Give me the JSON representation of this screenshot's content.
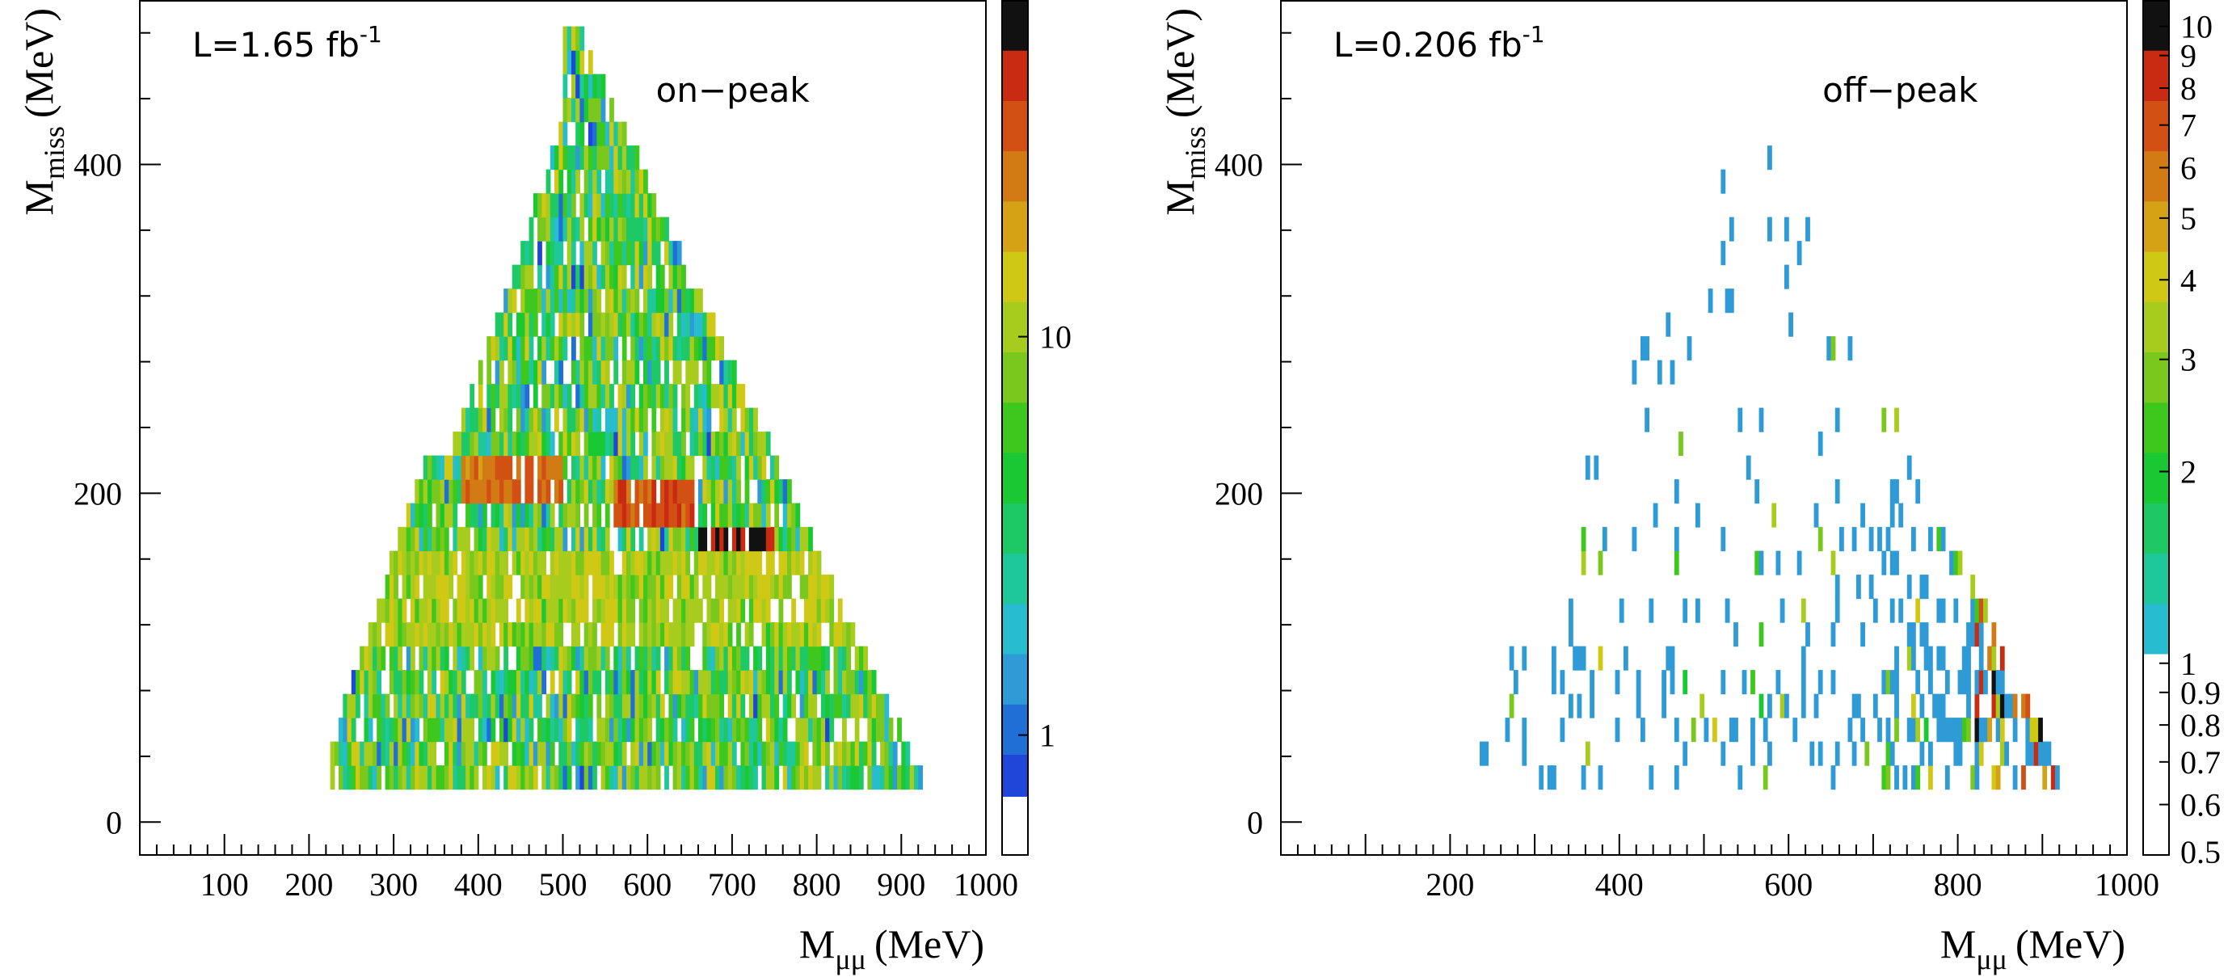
{
  "chart_data": [
    {
      "type": "heatmap",
      "panel": "left",
      "luminosity_label": "L=1.65 fb",
      "luminosity_exponent": "-1",
      "annotation": "on−peak",
      "xlabel_main": "M",
      "xlabel_sub": "μμ",
      "xlabel_unit": "(MeV)",
      "ylabel_main": "M",
      "ylabel_sub": "miss",
      "ylabel_unit": "(MeV)",
      "xlim": [
        0,
        1000
      ],
      "ylim": [
        -20,
        500
      ],
      "x_ticks": [
        100,
        200,
        300,
        400,
        500,
        600,
        700,
        800,
        900,
        1000
      ],
      "y_ticks": [
        0,
        200,
        400
      ],
      "z_scale": "log",
      "zlim": [
        0.5,
        70
      ],
      "colorbar_ticks": [
        1,
        10
      ],
      "region": {
        "x_min": 210,
        "x_max": 930,
        "y_min": 20,
        "y_max": 480
      },
      "density_description": "triangular kinematic region, dense filling; bands near Mmiss~200 MeV reaching 40-70 counts",
      "hot_bands": [
        {
          "y": 205,
          "x_from": 380,
          "x_to": 500,
          "value": 30
        },
        {
          "y": 190,
          "x_from": 560,
          "x_to": 660,
          "value": 35
        },
        {
          "y": 175,
          "x_from": 660,
          "x_to": 750,
          "value": 60
        }
      ]
    },
    {
      "type": "heatmap",
      "panel": "right",
      "luminosity_label": "L=0.206 fb",
      "luminosity_exponent": "-1",
      "annotation": "off−peak",
      "xlabel_main": "M",
      "xlabel_sub": "μμ",
      "xlabel_unit": "(MeV)",
      "ylabel_main": "M",
      "ylabel_sub": "miss",
      "ylabel_unit": "(MeV)",
      "xlim": [
        0,
        1000
      ],
      "ylim": [
        -20,
        500
      ],
      "x_ticks": [
        200,
        400,
        600,
        800,
        1000
      ],
      "y_ticks": [
        0,
        200,
        400
      ],
      "z_scale": "log",
      "zlim": [
        0.5,
        11
      ],
      "colorbar_ticks": [
        {
          "value": 0.5,
          "label": "0.5"
        },
        {
          "value": 0.6,
          "label": "0.6"
        },
        {
          "value": 0.7,
          "label": "0.7"
        },
        {
          "value": 0.8,
          "label": "0.8"
        },
        {
          "value": 0.9,
          "label": "0.9"
        },
        {
          "value": 1,
          "label": "1"
        },
        {
          "value": 2,
          "label": "2"
        },
        {
          "value": 3,
          "label": "3"
        },
        {
          "value": 4,
          "label": "4"
        },
        {
          "value": 5,
          "label": "5"
        },
        {
          "value": 6,
          "label": "6"
        },
        {
          "value": 7,
          "label": "7"
        },
        {
          "value": 8,
          "label": "8"
        },
        {
          "value": 9,
          "label": "9"
        },
        {
          "value": 10,
          "label": "10"
        }
      ],
      "region": {
        "x_min": 210,
        "x_max": 930,
        "y_min": 20,
        "y_max": 480
      },
      "density_description": "sparse entries mostly 1 count; denser toward high Mmuu, low Mmiss, with maxima ~8-10 near (880,110)"
    }
  ]
}
